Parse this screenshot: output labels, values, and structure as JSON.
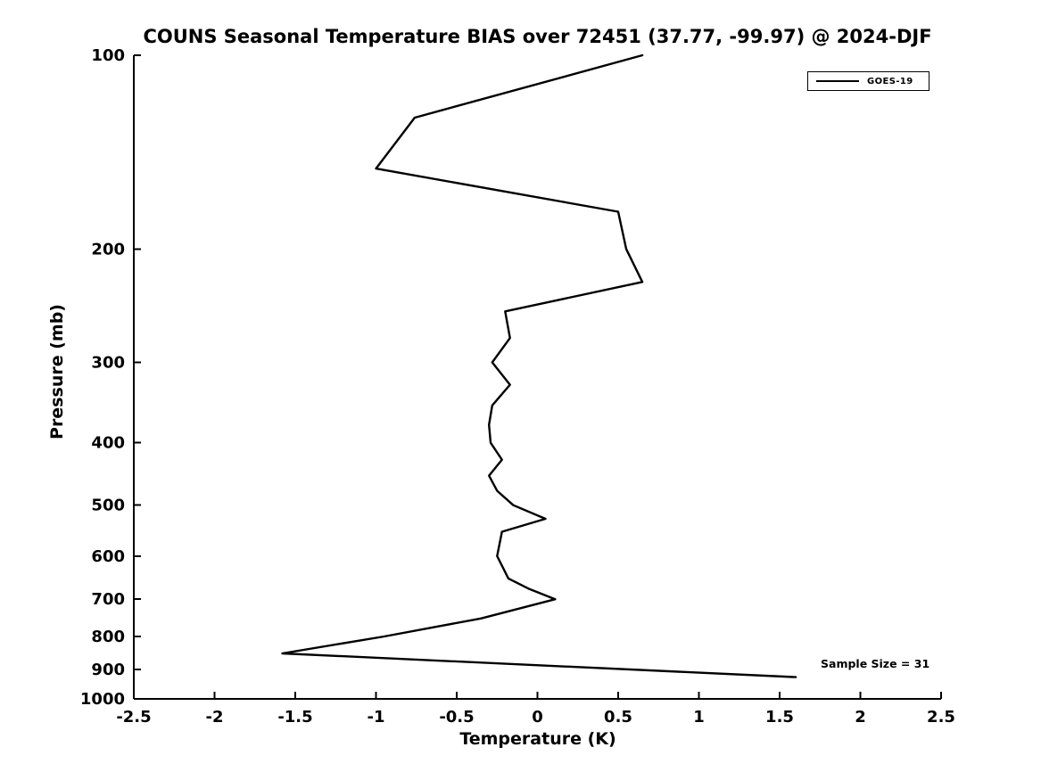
{
  "chart_data": {
    "type": "line",
    "title": "COUNS Seasonal Temperature BIAS over 72451 (37.77, -99.97) @ 2024-DJF",
    "xlabel": "Temperature (K)",
    "ylabel": "Pressure (mb)",
    "xlim": [
      -2.5,
      2.5
    ],
    "ylim": [
      100,
      1000
    ],
    "yscale": "log",
    "y_direction": "reversed",
    "grid": false,
    "xticks": [
      -2.5,
      -2,
      -1.5,
      -1,
      -0.5,
      0,
      0.5,
      1,
      1.5,
      2,
      2.5
    ],
    "xtick_labels": [
      "-2.5",
      "-2",
      "-1.5",
      "-1",
      "-0.5",
      "0",
      "0.5",
      "1",
      "1.5",
      "2",
      "2.5"
    ],
    "yticks": [
      100,
      200,
      300,
      400,
      500,
      600,
      700,
      800,
      900,
      1000
    ],
    "ytick_labels": [
      "100",
      "200",
      "300",
      "400",
      "500",
      "600",
      "700",
      "800",
      "900",
      "1000"
    ],
    "legend": {
      "position": "top-right",
      "entries": [
        {
          "label": "GOES-19",
          "color": "#000000"
        }
      ]
    },
    "annotation": "Sample Size = 31",
    "series": [
      {
        "name": "GOES-19",
        "color": "#000000",
        "pressure": [
          100,
          125,
          150,
          175,
          200,
          225,
          250,
          275,
          300,
          325,
          350,
          375,
          400,
          425,
          450,
          475,
          500,
          525,
          550,
          600,
          650,
          675,
          700,
          750,
          800,
          850,
          925
        ],
        "bias": [
          0.65,
          -0.76,
          -1.0,
          0.5,
          0.55,
          0.65,
          -0.2,
          -0.17,
          -0.28,
          -0.17,
          -0.28,
          -0.3,
          -0.29,
          -0.22,
          -0.3,
          -0.25,
          -0.15,
          0.05,
          -0.22,
          -0.25,
          -0.18,
          -0.05,
          0.11,
          -0.35,
          -0.95,
          -1.58,
          1.6
        ]
      }
    ]
  }
}
